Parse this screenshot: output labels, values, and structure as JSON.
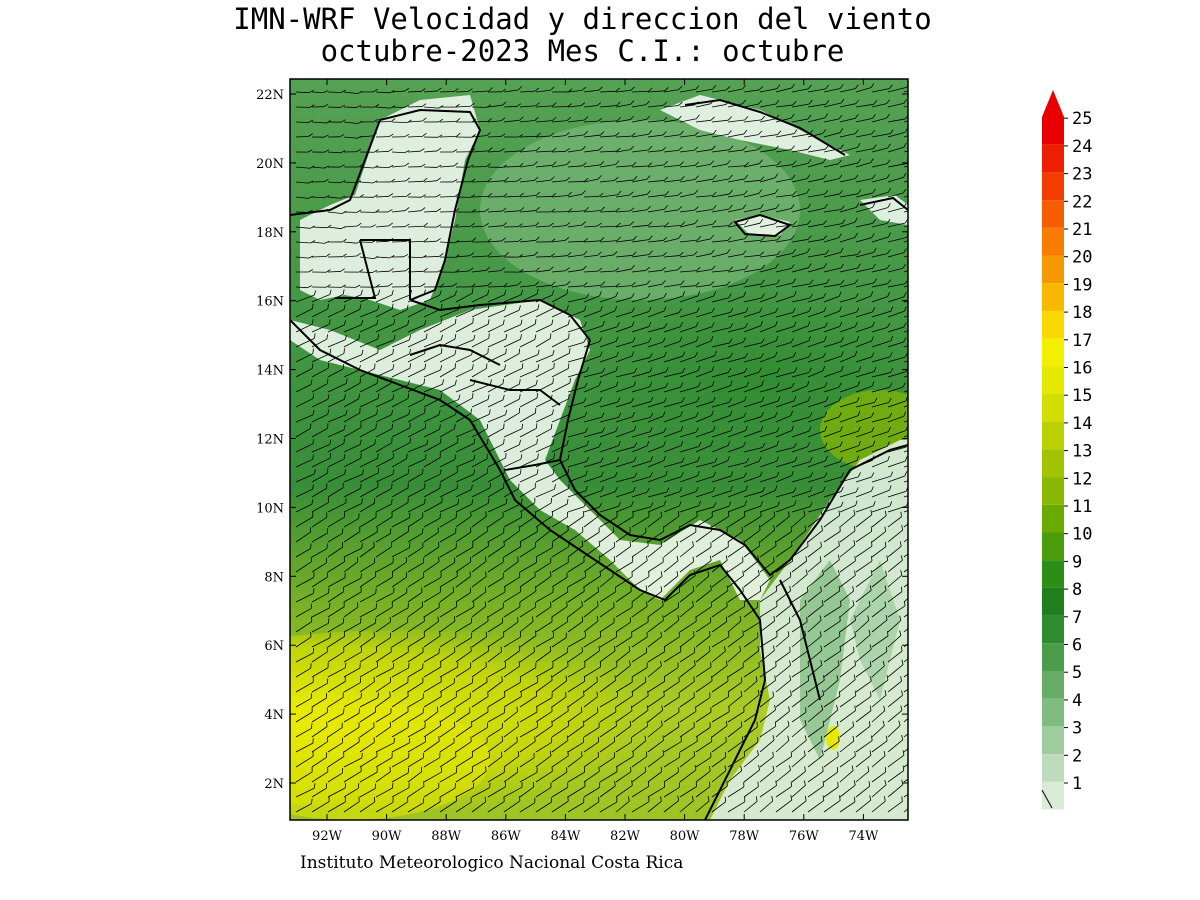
{
  "title": {
    "line1": "IMN-WRF Velocidad y direccion del viento",
    "line2": "octubre-2023 Mes C.I.: octubre"
  },
  "axes": {
    "lat_labels": [
      "2N",
      "4N",
      "6N",
      "8N",
      "10N",
      "12N",
      "14N",
      "16N",
      "18N",
      "20N",
      "22N"
    ],
    "lon_labels": [
      "92W",
      "90W",
      "88W",
      "86W",
      "84W",
      "82W",
      "80W",
      "78W",
      "76W",
      "74W"
    ]
  },
  "footer": "Instituto Meteorologico Nacional Costa Rica",
  "colorbar": {
    "labels": [
      "1",
      "2",
      "3",
      "4",
      "5",
      "6",
      "7",
      "8",
      "9",
      "10",
      "11",
      "12",
      "13",
      "14",
      "15",
      "16",
      "17",
      "18",
      "19",
      "20",
      "21",
      "22",
      "23",
      "24",
      "25"
    ],
    "colors": [
      "#ffffff",
      "#d8ecd8",
      "#bcdcbc",
      "#9fcc9f",
      "#80bb80",
      "#66ac66",
      "#4c9c4c",
      "#2e8b2e",
      "#1f7f1f",
      "#2a8f14",
      "#4a9c0a",
      "#6aab00",
      "#88b800",
      "#a2c400",
      "#bad000",
      "#d2dd00",
      "#e6e800",
      "#f2f000",
      "#f8d800",
      "#f8b800",
      "#f89800",
      "#f87c00",
      "#f85c00",
      "#f43c00",
      "#ee1e00",
      "#e80000"
    ]
  },
  "colors": {
    "coast": "#000000",
    "barb": "#000000"
  }
}
